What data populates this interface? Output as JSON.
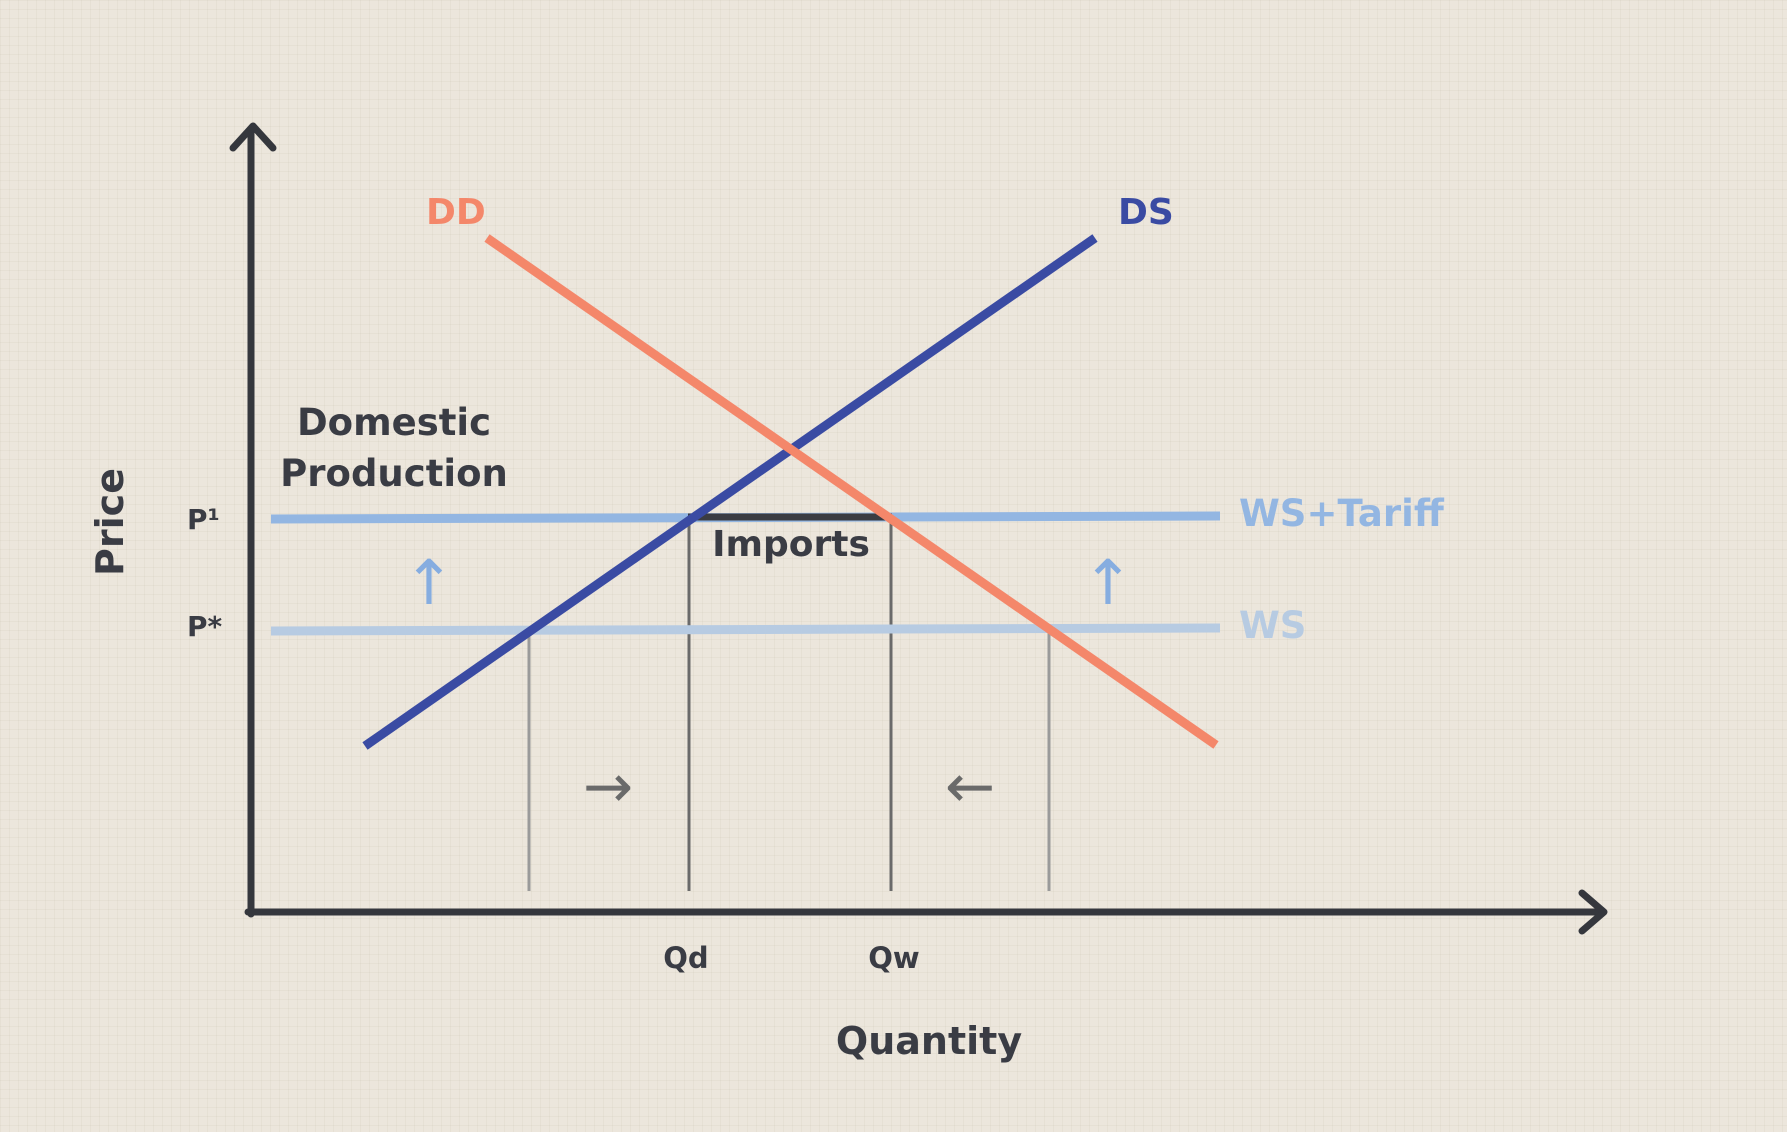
{
  "axes": {
    "y_label": "Price",
    "x_label": "Quantity"
  },
  "curves": {
    "demand": {
      "label": "DD",
      "color": "#f4876a"
    },
    "supply": {
      "label": "DS",
      "color": "#3a4ba3"
    }
  },
  "price_lines": {
    "ws_tariff": {
      "label": "WS+Tariff",
      "tick_label": "P¹",
      "color": "#93b6e2"
    },
    "ws": {
      "label": "WS",
      "tick_label": "P*",
      "color": "#b7cbe2"
    }
  },
  "quantity_ticks": {
    "qd": "Qd",
    "qw": "Qw"
  },
  "annotations": {
    "domestic_production_line1": "Domestic",
    "domestic_production_line2": "Production",
    "imports": "Imports"
  },
  "arrows": {
    "up_arrow": "↑",
    "right_arrow": "→",
    "left_arrow": "←"
  },
  "colors": {
    "axis": "#35373d",
    "text": "#3a3c44",
    "guide_light": "#9a9a9a",
    "guide_dark": "#6a6a6a",
    "arrow_blue": "#86ade0"
  }
}
